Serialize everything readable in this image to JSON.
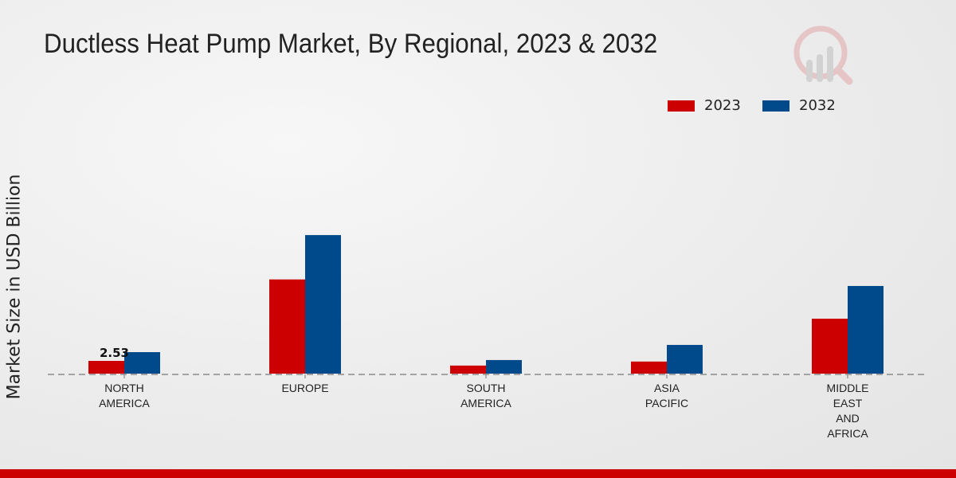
{
  "chart_data": {
    "type": "bar",
    "title": "Ductless Heat Pump Market, By Regional, 2023 & 2032",
    "xlabel": "",
    "ylabel": "Market Size in USD Billion",
    "categories": [
      [
        "NORTH",
        "AMERICA"
      ],
      [
        "EUROPE"
      ],
      [
        "SOUTH",
        "AMERICA"
      ],
      [
        "ASIA",
        "PACIFIC"
      ],
      [
        "MIDDLE",
        "EAST",
        "AND",
        "AFRICA"
      ]
    ],
    "series": [
      {
        "name": "2023",
        "color": "#cc0000",
        "values": [
          2.53,
          18.7,
          1.6,
          2.4,
          10.9
        ]
      },
      {
        "name": "2032",
        "color": "#004a8c",
        "values": [
          4.27,
          27.5,
          2.7,
          5.7,
          17.4
        ]
      }
    ],
    "data_labels": [
      {
        "series": "2023",
        "category": "NORTH AMERICA",
        "text": "2.53"
      }
    ],
    "ylim": [
      0,
      30
    ],
    "grid": false,
    "legend_position": "top-right"
  }
}
